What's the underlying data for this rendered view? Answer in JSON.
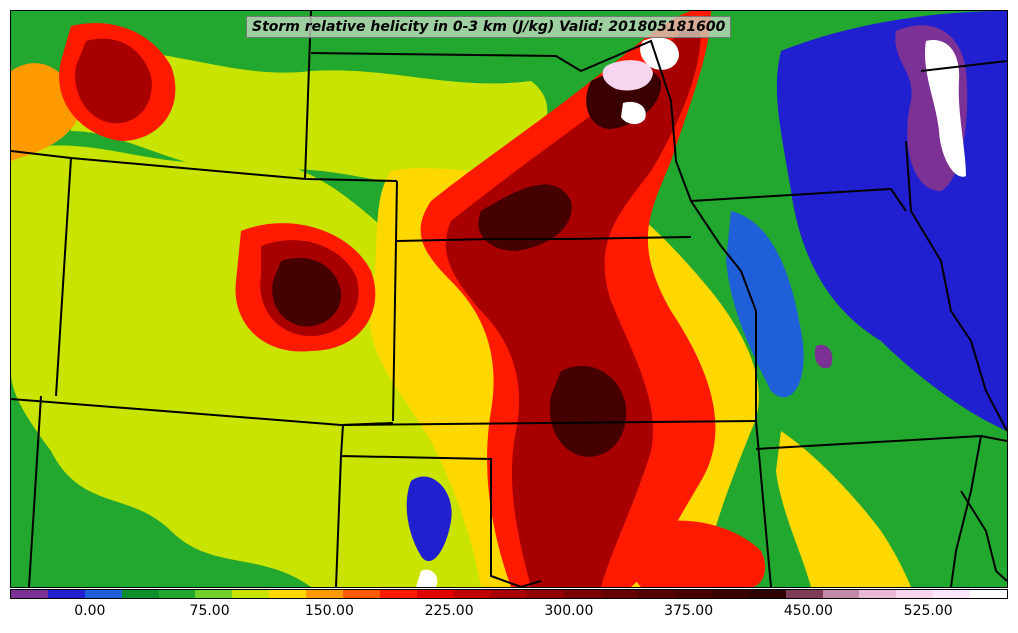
{
  "title": "Storm relative helicity in 0-3 km (J/kg) Valid: 201805181600",
  "colorbar": {
    "colors": [
      "#7b3294",
      "#2020d0",
      "#1f5fd8",
      "#0f8f2e",
      "#22a82e",
      "#6fd02a",
      "#c8e400",
      "#ffd800",
      "#ff9a00",
      "#ff5a00",
      "#ff1a00",
      "#e00000",
      "#c00000",
      "#a80000",
      "#900000",
      "#7a0000",
      "#650000",
      "#550000",
      "#450000",
      "#3a0000",
      "#2e0000",
      "#7e3b55",
      "#c08aa6",
      "#e7b9d7",
      "#f7d5ef",
      "#fbe7f7",
      "#ffffff"
    ],
    "tick_labels": [
      "0.00",
      "75.00",
      "150.00",
      "225.00",
      "300.00",
      "375.00",
      "450.00",
      "525.00"
    ],
    "tick_values": [
      0,
      75,
      150,
      225,
      300,
      375,
      450,
      525
    ],
    "min": -50,
    "max": 575
  },
  "map": {
    "region": "Central United States",
    "field_colors": {
      "background": "#22a82e",
      "low": "#2020d0",
      "negative": "#7b3294",
      "moderate": "#c8e400",
      "elevated": "#ffd800",
      "high": "#ff1a00",
      "very_high": "#a80000",
      "extreme": "#450000",
      "max": "#ffffff"
    }
  }
}
